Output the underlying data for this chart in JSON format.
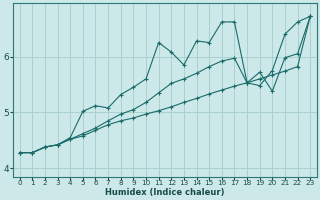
{
  "background_color": "#cce8e8",
  "grid_color": "#aad0d0",
  "line_color": "#1a6b6b",
  "xlabel": "Humidex (Indice chaleur)",
  "xlim": [
    -0.5,
    23.5
  ],
  "ylim": [
    3.85,
    6.95
  ],
  "yticks": [
    4,
    5,
    6
  ],
  "xticks": [
    0,
    1,
    2,
    3,
    4,
    5,
    6,
    7,
    8,
    9,
    10,
    11,
    12,
    13,
    14,
    15,
    16,
    17,
    18,
    19,
    20,
    21,
    22,
    23
  ],
  "series": [
    {
      "x": [
        0,
        1,
        2,
        3,
        4,
        5,
        6,
        7,
        8,
        9,
        10,
        11,
        12,
        13,
        14,
        15,
        16,
        17,
        18,
        19,
        20,
        21,
        22,
        23
      ],
      "y": [
        4.28,
        4.28,
        4.38,
        4.42,
        4.52,
        4.58,
        4.68,
        4.78,
        4.85,
        4.9,
        4.97,
        5.03,
        5.1,
        5.18,
        5.25,
        5.33,
        5.4,
        5.47,
        5.53,
        5.6,
        5.67,
        5.74,
        5.82,
        6.72
      ]
    },
    {
      "x": [
        0,
        1,
        2,
        3,
        4,
        5,
        6,
        7,
        8,
        9,
        10,
        11,
        12,
        13,
        14,
        15,
        16,
        17,
        18,
        19,
        20,
        21,
        22,
        23
      ],
      "y": [
        4.28,
        4.28,
        4.38,
        4.42,
        4.52,
        4.62,
        4.72,
        4.85,
        4.97,
        5.05,
        5.18,
        5.35,
        5.52,
        5.6,
        5.7,
        5.82,
        5.92,
        5.97,
        5.53,
        5.72,
        5.38,
        5.98,
        6.05,
        6.72
      ]
    },
    {
      "x": [
        0,
        1,
        2,
        3,
        4,
        5,
        6,
        7,
        8,
        9,
        10,
        11,
        12,
        13,
        14,
        15,
        16,
        17,
        18,
        19,
        20,
        21,
        22,
        23
      ],
      "y": [
        4.28,
        4.28,
        4.38,
        4.42,
        4.55,
        5.02,
        5.12,
        5.08,
        5.32,
        5.45,
        5.6,
        6.25,
        6.08,
        5.85,
        6.28,
        6.25,
        6.62,
        6.62,
        5.53,
        5.48,
        5.75,
        6.4,
        6.62,
        6.72
      ]
    }
  ]
}
